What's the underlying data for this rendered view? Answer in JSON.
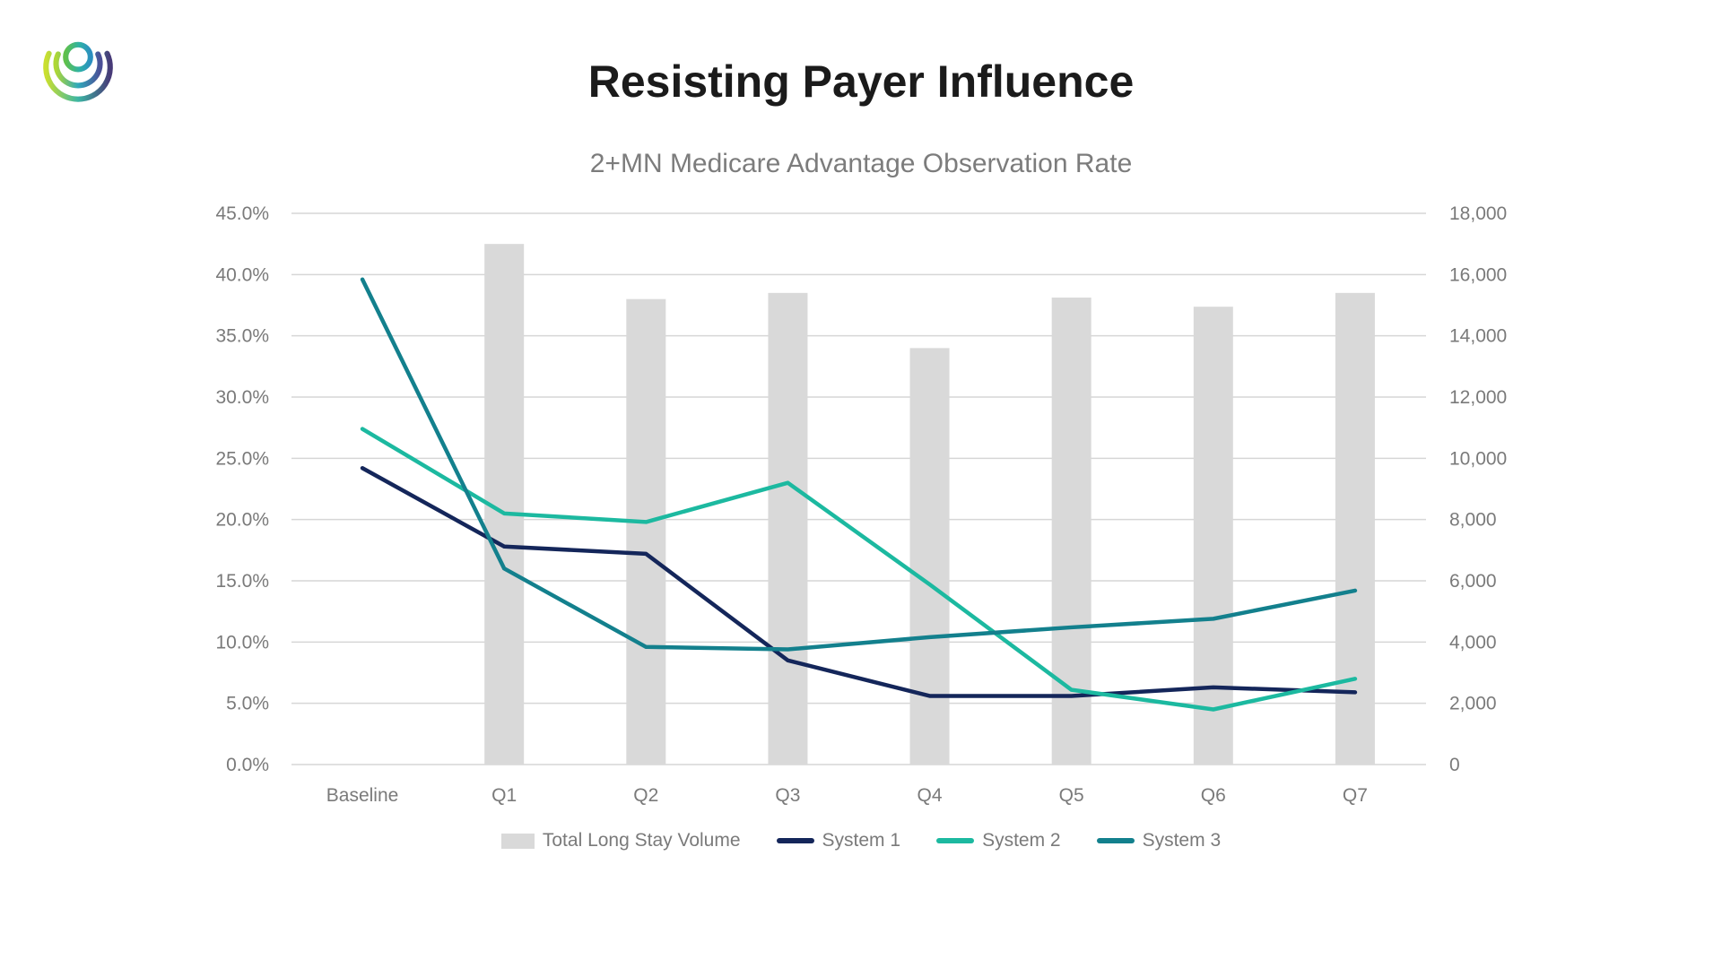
{
  "logo": {
    "name": "concentric-arcs-logo"
  },
  "header": {
    "title": "Resisting Payer Influence",
    "subtitle": "2+MN Medicare Advantage Observation Rate"
  },
  "chart_data": {
    "type": "combo-bar-line",
    "categories": [
      "Baseline",
      "Q1",
      "Q2",
      "Q3",
      "Q4",
      "Q5",
      "Q6",
      "Q7"
    ],
    "series": [
      {
        "name": "Total Long Stay Volume",
        "type": "bar",
        "axis": "right",
        "color": "#d9d9d9",
        "values": [
          null,
          17000,
          15200,
          15400,
          13600,
          15250,
          14950,
          15400
        ]
      },
      {
        "name": "System 1",
        "type": "line",
        "axis": "left",
        "color": "#14265a",
        "values": [
          24.2,
          17.8,
          17.2,
          8.5,
          5.6,
          5.6,
          6.3,
          5.9
        ]
      },
      {
        "name": "System 2",
        "type": "line",
        "axis": "left",
        "color": "#1cb9a0",
        "values": [
          27.4,
          20.5,
          19.8,
          23.0,
          14.7,
          6.1,
          4.5,
          7.0
        ]
      },
      {
        "name": "System 3",
        "type": "line",
        "axis": "left",
        "color": "#13808d",
        "values": [
          39.6,
          16.0,
          9.6,
          9.4,
          10.4,
          11.2,
          11.9,
          14.2
        ]
      }
    ],
    "left_axis": {
      "min": 0,
      "max": 45,
      "step": 5,
      "format": "percent-one-decimal",
      "tick_labels": [
        "0.0%",
        "5.0%",
        "10.0%",
        "15.0%",
        "20.0%",
        "25.0%",
        "30.0%",
        "35.0%",
        "40.0%",
        "45.0%"
      ]
    },
    "right_axis": {
      "min": 0,
      "max": 18000,
      "step": 2000,
      "format": "thousands-comma",
      "tick_labels": [
        "0",
        "2,000",
        "4,000",
        "6,000",
        "8,000",
        "10,000",
        "12,000",
        "14,000",
        "16,000",
        "18,000"
      ]
    },
    "grid": true,
    "legend_position": "bottom",
    "title": "2+MN Medicare Advantage Observation Rate"
  },
  "style_colors": {
    "grid": "#d6d6d6",
    "bar": "#d9d9d9",
    "axis_text": "#7a7a7a",
    "title_text": "#1b1b1b",
    "subtitle_text": "#7c7c7c"
  }
}
